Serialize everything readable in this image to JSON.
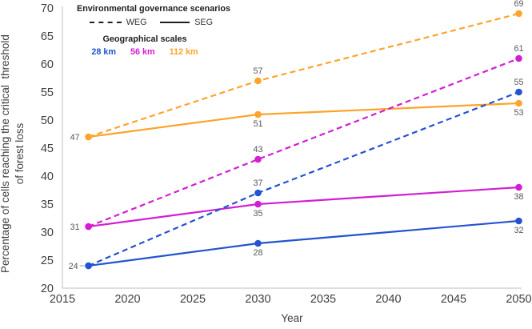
{
  "chart_data": {
    "type": "line",
    "title": "",
    "xlabel": "Year",
    "ylabel_line1": "Percentage of cells reaching the critical  threshold",
    "ylabel_line2": "of forest loss",
    "xlim": [
      2015,
      2050
    ],
    "ylim": [
      20,
      70
    ],
    "x_ticks": [
      2015,
      2020,
      2025,
      2030,
      2035,
      2040,
      2045,
      2050
    ],
    "y_ticks": [
      20,
      25,
      30,
      35,
      40,
      45,
      50,
      55,
      60,
      65,
      70
    ],
    "grid": false,
    "legend_position": "top-left-inside",
    "x": [
      2017,
      2030,
      2050
    ],
    "series": [
      {
        "name": "112 km WEG",
        "scale": "112 km",
        "scenario": "WEG",
        "style": "dashed",
        "color": "#ffa32b",
        "values": [
          47,
          57,
          69
        ],
        "point_labels": [
          null,
          {
            "text": "57",
            "pos": "above"
          },
          {
            "text": "69",
            "pos": "above"
          }
        ]
      },
      {
        "name": "112 km SEG",
        "scale": "112 km",
        "scenario": "SEG",
        "style": "solid",
        "color": "#ffa32b",
        "values": [
          47,
          51,
          53
        ],
        "point_labels": [
          {
            "text": "47",
            "pos": "left"
          },
          {
            "text": "51",
            "pos": "below"
          },
          {
            "text": "53",
            "pos": "below"
          }
        ]
      },
      {
        "name": "56 km WEG",
        "scale": "56 km",
        "scenario": "WEG",
        "style": "dashed",
        "color": "#d31ed3",
        "values": [
          31,
          43,
          61
        ],
        "point_labels": [
          null,
          {
            "text": "43",
            "pos": "above"
          },
          {
            "text": "61",
            "pos": "above"
          }
        ]
      },
      {
        "name": "56 km SEG",
        "scale": "56 km",
        "scenario": "SEG",
        "style": "solid",
        "color": "#d31ed3",
        "values": [
          31,
          35,
          38
        ],
        "point_labels": [
          {
            "text": "31",
            "pos": "left"
          },
          {
            "text": "35",
            "pos": "below"
          },
          {
            "text": "38",
            "pos": "below"
          }
        ]
      },
      {
        "name": "28 km WEG",
        "scale": "28 km",
        "scenario": "WEG",
        "style": "dashed",
        "color": "#2353cf",
        "values": [
          24,
          37,
          55
        ],
        "point_labels": [
          null,
          {
            "text": "37",
            "pos": "above"
          },
          {
            "text": "55",
            "pos": "above"
          }
        ]
      },
      {
        "name": "28 km SEG",
        "scale": "28 km",
        "scenario": "SEG",
        "style": "solid",
        "color": "#2353cf",
        "values": [
          24,
          28,
          32
        ],
        "point_labels": [
          {
            "text": "24",
            "pos": "left",
            "leader": true
          },
          {
            "text": "28",
            "pos": "below"
          },
          {
            "text": "32",
            "pos": "below"
          }
        ]
      }
    ]
  },
  "legend": {
    "governance_title": "Environmental governance scenarios",
    "weg_label": "WEG",
    "seg_label": "SEG",
    "scales_title": "Geographical scales",
    "scales": [
      {
        "label": "28 km",
        "color": "#2353cf"
      },
      {
        "label": "56 km",
        "color": "#d31ed3"
      },
      {
        "label": "112 km",
        "color": "#ffa32b"
      }
    ]
  },
  "colors": {
    "axis_line": "#c9c9c9",
    "tick_text": "#3f3f3f",
    "data_label": "#595959",
    "leader_line": "#999999"
  }
}
